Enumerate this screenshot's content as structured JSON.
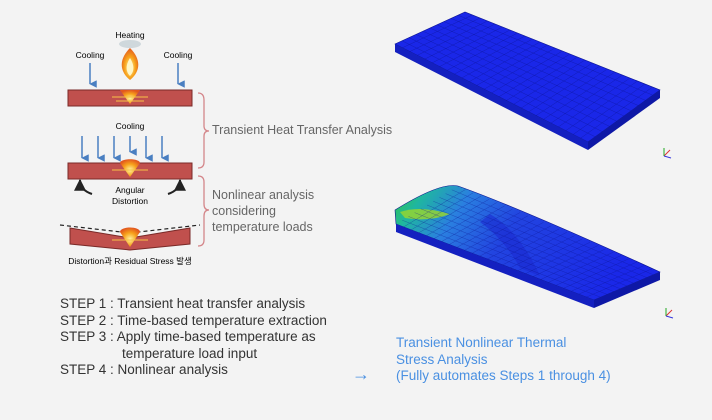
{
  "diagram": {
    "labels": {
      "heating": "Heating",
      "cooling_left": "Cooling",
      "cooling_right": "Cooling",
      "cooling_middle": "Cooling",
      "angular_distortion_1": "Angular",
      "angular_distortion_2": "Distortion",
      "residual_caption": "Distortion과 Residual Stress 발생"
    },
    "phases": {
      "transient": "Transient Heat Transfer Analysis",
      "nonlinear_1": "Nonlinear analysis",
      "nonlinear_2": "considering",
      "nonlinear_3": "temperature loads"
    },
    "steps": [
      "STEP 1 : Transient heat transfer analysis",
      "STEP 2 : Time-based temperature extraction",
      "STEP 3 : Apply time-based temperature as",
      "temperature load input",
      "STEP 4 : Nonlinear analysis"
    ],
    "result": {
      "line1": "Transient Nonlinear Thermal",
      "line2": "Stress Analysis",
      "line3": "(Fully automates Steps 1 through 4)"
    },
    "arrow": "→",
    "colors": {
      "plate": "#c0504d",
      "plate_edge": "#7a2a28",
      "arrow_blue": "#4a7fc1",
      "brace": "#d4868a",
      "result_text": "#4a90e2"
    }
  }
}
